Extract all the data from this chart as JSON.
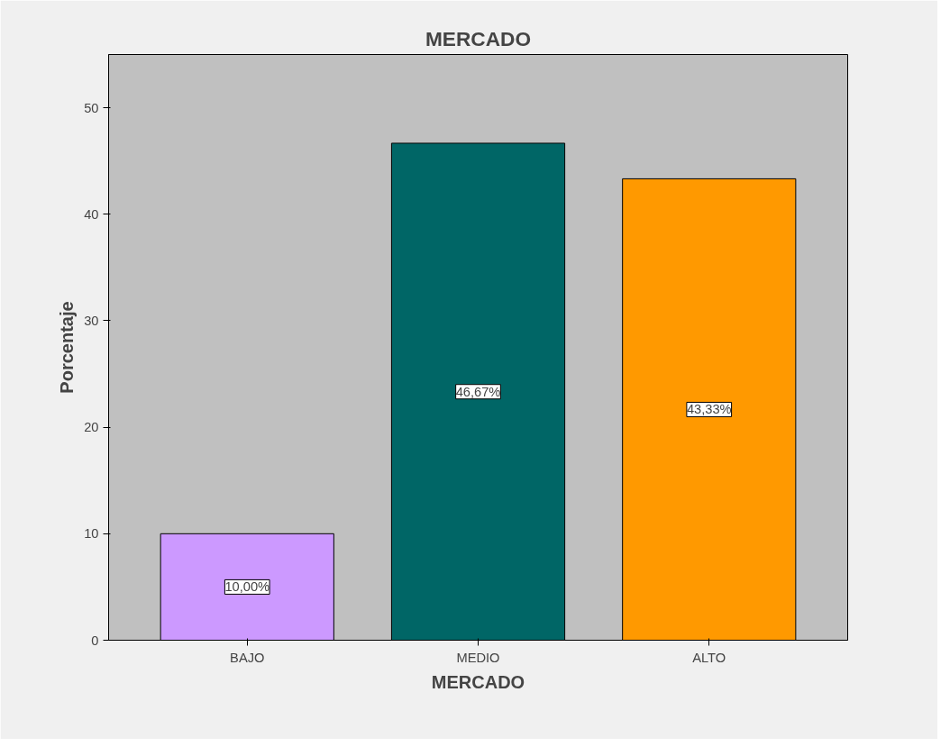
{
  "chart_data": {
    "type": "bar",
    "title": "MERCADO",
    "xlabel": "MERCADO",
    "ylabel": "Porcentaje",
    "categories": [
      "BAJO",
      "MEDIO",
      "ALTO"
    ],
    "values": [
      10.0,
      46.67,
      43.33
    ],
    "colors": [
      "#cc99ff",
      "#006666",
      "#ff9900"
    ],
    "value_labels": [
      "10,00%",
      "46,67%",
      "43,33%"
    ],
    "ylim": [
      0,
      55
    ],
    "yticks": [
      0,
      10,
      20,
      30,
      40,
      50
    ],
    "grid": false
  }
}
